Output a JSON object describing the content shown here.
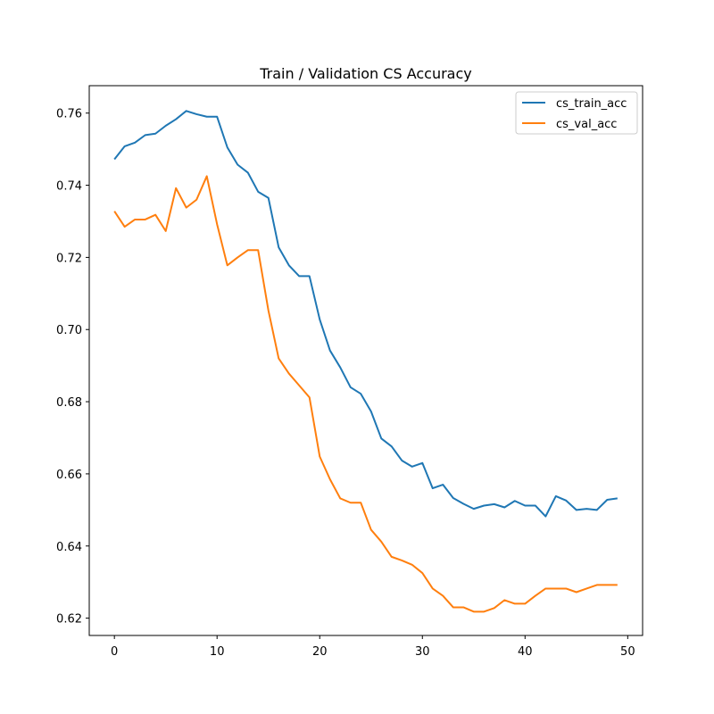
{
  "chart_data": {
    "type": "line",
    "title": "Train / Validation CS Accuracy",
    "xlabel": "",
    "ylabel": "",
    "xlim": [
      -2.45,
      51.45
    ],
    "ylim": [
      0.6152,
      0.7676
    ],
    "xticks": [
      0,
      10,
      20,
      30,
      40,
      50
    ],
    "yticks": [
      0.62,
      0.64,
      0.66,
      0.68,
      0.7,
      0.72,
      0.74,
      0.76
    ],
    "ytick_labels": [
      "0.62",
      "0.64",
      "0.66",
      "0.68",
      "0.70",
      "0.72",
      "0.74",
      "0.76"
    ],
    "grid": false,
    "legend_position": "top-right",
    "x": [
      0,
      1,
      2,
      3,
      4,
      5,
      6,
      7,
      8,
      9,
      10,
      11,
      12,
      13,
      14,
      15,
      16,
      17,
      18,
      19,
      20,
      21,
      22,
      23,
      24,
      25,
      26,
      27,
      28,
      29,
      30,
      31,
      32,
      33,
      34,
      35,
      36,
      37,
      38,
      39,
      40,
      41,
      42,
      43,
      44,
      45,
      46,
      47,
      48,
      49
    ],
    "series": [
      {
        "name": "cs_train_acc",
        "color": "#1f77b4",
        "values": [
          0.7472,
          0.7508,
          0.7518,
          0.7539,
          0.7543,
          0.7565,
          0.7583,
          0.7606,
          0.7597,
          0.759,
          0.759,
          0.7505,
          0.7457,
          0.7435,
          0.7382,
          0.7365,
          0.7228,
          0.7178,
          0.7148,
          0.7148,
          0.7028,
          0.6942,
          0.6895,
          0.684,
          0.6822,
          0.6773,
          0.6698,
          0.6676,
          0.6637,
          0.662,
          0.663,
          0.656,
          0.657,
          0.6533,
          0.6517,
          0.6503,
          0.6512,
          0.6516,
          0.6507,
          0.6525,
          0.6512,
          0.6512,
          0.6482,
          0.6538,
          0.6526,
          0.65,
          0.6503,
          0.65,
          0.6528,
          0.6532
        ]
      },
      {
        "name": "cs_val_acc",
        "color": "#ff7f0e",
        "values": [
          0.7328,
          0.7285,
          0.7305,
          0.7305,
          0.7318,
          0.7273,
          0.7392,
          0.7338,
          0.736,
          0.7425,
          0.7292,
          0.7178,
          0.72,
          0.722,
          0.722,
          0.7053,
          0.692,
          0.6878,
          0.6845,
          0.6812,
          0.6648,
          0.6585,
          0.6532,
          0.652,
          0.652,
          0.6445,
          0.6412,
          0.637,
          0.636,
          0.6348,
          0.6325,
          0.6282,
          0.6262,
          0.623,
          0.623,
          0.6218,
          0.6218,
          0.6228,
          0.625,
          0.624,
          0.624,
          0.6262,
          0.6282,
          0.6282,
          0.6282,
          0.6272,
          0.6282,
          0.6292,
          0.6292,
          0.6292
        ]
      }
    ]
  }
}
